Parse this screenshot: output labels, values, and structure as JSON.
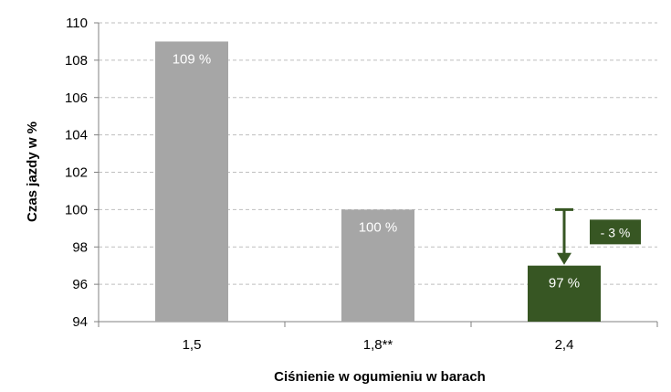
{
  "chart_data": {
    "type": "bar",
    "title": "",
    "xlabel": "Ciśnienie w ogumieniu w barach",
    "ylabel": "Czas jazdy w %",
    "categories": [
      "1,5",
      "1,8**",
      "2,4"
    ],
    "values": [
      109,
      100,
      97
    ],
    "value_labels": [
      "109 %",
      "100 %",
      "97 %"
    ],
    "ylim": [
      94,
      110
    ],
    "yticks": [
      94,
      96,
      98,
      100,
      102,
      104,
      106,
      108,
      110
    ],
    "grid": true,
    "legend": "none",
    "annotation": {
      "label": "- 3 %",
      "from": 100,
      "to": 97,
      "category": "2,4"
    },
    "colors": {
      "bar_default": "#a6a6a6",
      "bar_highlight": "#375623",
      "annotation": "#375623",
      "grid": "#bfbfbf"
    },
    "highlight_index": 2
  }
}
